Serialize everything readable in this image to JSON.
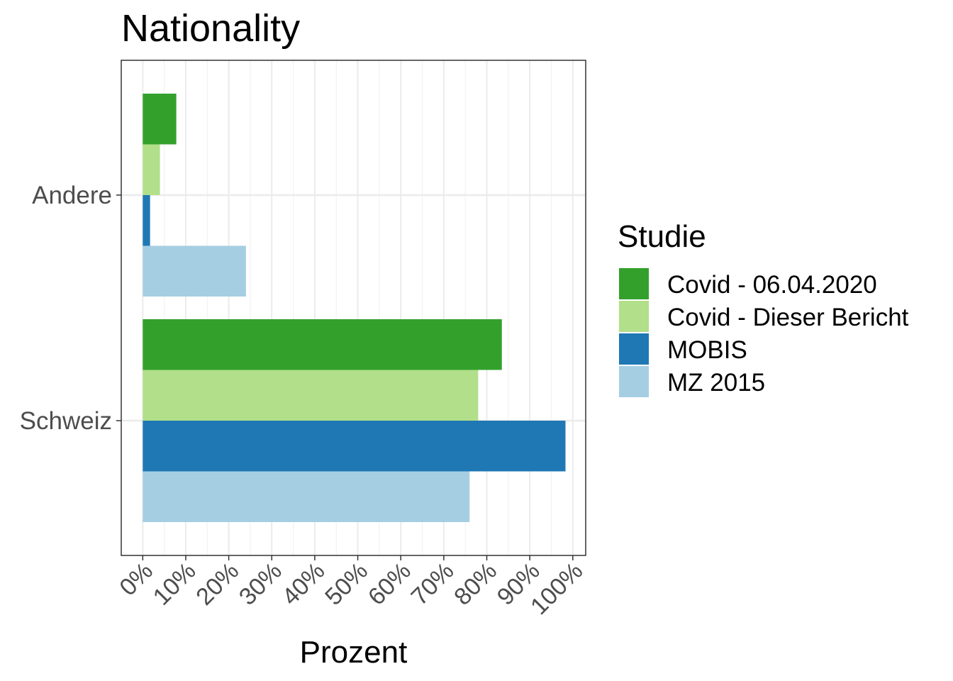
{
  "chart_data": {
    "type": "bar",
    "orientation": "horizontal",
    "title": "Nationality",
    "xlabel": "Prozent",
    "ylabel": "",
    "xlim": [
      -0.05,
      1.03
    ],
    "x_ticks": [
      0,
      0.1,
      0.2,
      0.3,
      0.4,
      0.5,
      0.6,
      0.7,
      0.8,
      0.9,
      1.0
    ],
    "x_tick_labels": [
      "0%",
      "10%",
      "20%",
      "30%",
      "40%",
      "50%",
      "60%",
      "70%",
      "80%",
      "90%",
      "100%"
    ],
    "categories": [
      "Andere",
      "Schweiz"
    ],
    "legend_title": "Studie",
    "legend_position": "right",
    "grid": true,
    "series": [
      {
        "name": "Covid - 06.04.2020",
        "color": "#33a02c",
        "values": [
          0.078,
          0.835
        ]
      },
      {
        "name": "Covid - Dieser Bericht",
        "color": "#b2df8a",
        "values": [
          0.04,
          0.78
        ]
      },
      {
        "name": "MOBIS",
        "color": "#1f78b4",
        "values": [
          0.017,
          0.983
        ]
      },
      {
        "name": "MZ 2015",
        "color": "#a6cee3",
        "values": [
          0.24,
          0.76
        ]
      }
    ]
  }
}
